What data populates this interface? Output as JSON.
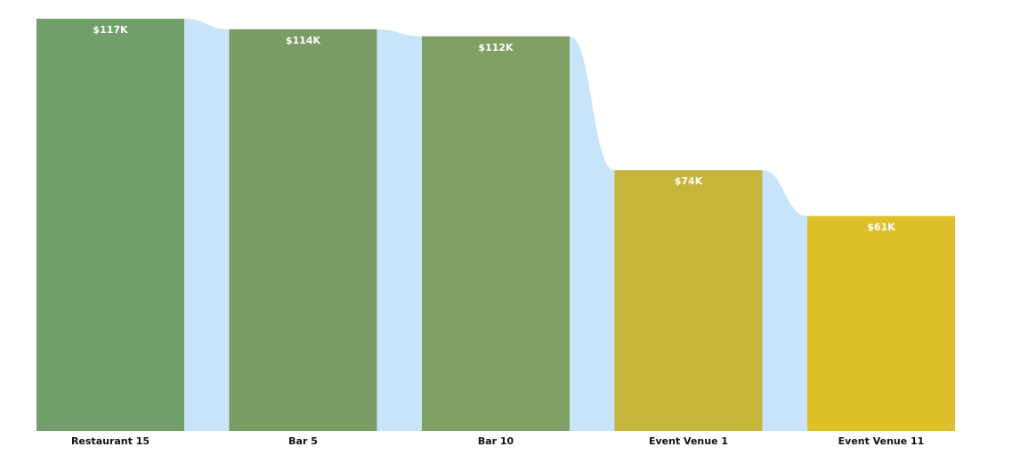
{
  "chart_data": {
    "type": "bar",
    "categories": [
      "Restaurant 15",
      "Bar 5",
      "Bar 10",
      "Event Venue 1",
      "Event Venue 11"
    ],
    "values": [
      117,
      114,
      112,
      74,
      61
    ],
    "value_labels": [
      "$117K",
      "$114K",
      "$112K",
      "$74K",
      "$61K"
    ],
    "bar_colors": [
      "#709f69",
      "#799c64",
      "#7ea063",
      "#c7b53b",
      "#dfc02b"
    ],
    "connector_color": "#c8e4fb",
    "unit": "$K",
    "ylim": [
      0,
      117
    ],
    "title": "",
    "xlabel": "",
    "ylabel": ""
  }
}
